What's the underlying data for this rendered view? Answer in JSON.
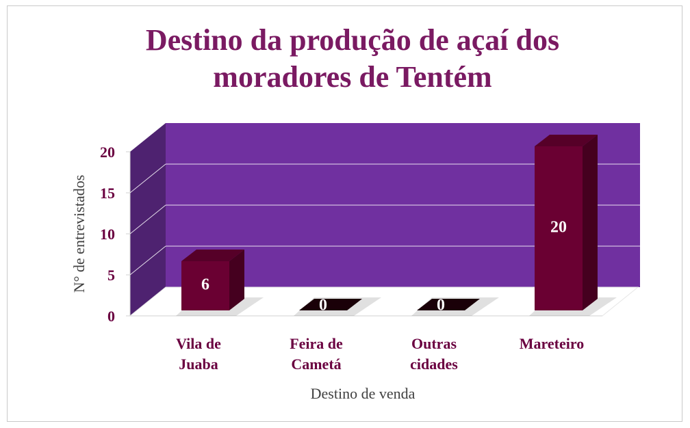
{
  "chart_data": {
    "type": "bar3d",
    "title": "Destino da produção de açaí dos moradores de Tentém",
    "x_label": "Destino de venda",
    "y_label": "N° de entrevistados",
    "categories": [
      "Vila de Juaba",
      "Feira de Cametá",
      "Outras cidades",
      "Mareteiro"
    ],
    "values": [
      6,
      0,
      0,
      20
    ],
    "color": "#6a0032",
    "wall_color": "#7030a0",
    "ylim": [
      0,
      20
    ],
    "yticks": [
      0,
      5,
      10,
      15,
      20
    ],
    "grid": true
  }
}
